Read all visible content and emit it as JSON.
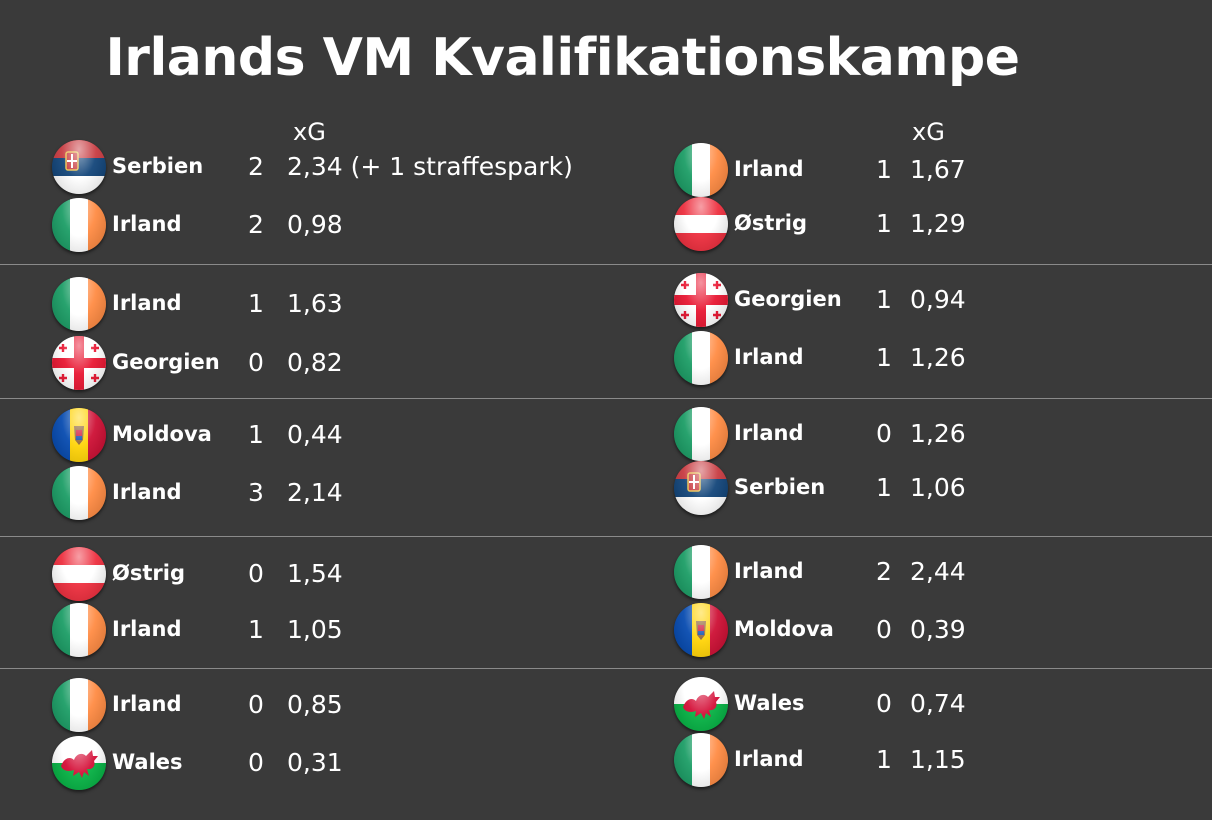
{
  "title": "Irlands VM Kvalifikationskampe",
  "xg_header_left": "xG",
  "xg_header_right": "xG",
  "matches_left": [
    {
      "home": {
        "team": "Serbien",
        "flag": "serbia",
        "goals": "2",
        "xg": "2,34 (+ 1 straffespark)"
      },
      "away": {
        "team": "Irland",
        "flag": "ireland",
        "goals": "2",
        "xg": "0,98"
      }
    },
    {
      "home": {
        "team": "Irland",
        "flag": "ireland",
        "goals": "1",
        "xg": "1,63"
      },
      "away": {
        "team": "Georgien",
        "flag": "georgia",
        "goals": "0",
        "xg": "0,82"
      }
    },
    {
      "home": {
        "team": "Moldova",
        "flag": "moldova",
        "goals": "1",
        "xg": "0,44"
      },
      "away": {
        "team": "Irland",
        "flag": "ireland",
        "goals": "3",
        "xg": "2,14"
      }
    },
    {
      "home": {
        "team": "Østrig",
        "flag": "austria",
        "goals": "0",
        "xg": "1,54"
      },
      "away": {
        "team": "Irland",
        "flag": "ireland",
        "goals": "1",
        "xg": "1,05"
      }
    },
    {
      "home": {
        "team": "Irland",
        "flag": "ireland",
        "goals": "0",
        "xg": "0,85"
      },
      "away": {
        "team": "Wales",
        "flag": "wales",
        "goals": "0",
        "xg": "0,31"
      }
    }
  ],
  "matches_right": [
    {
      "home": {
        "team": "Irland",
        "flag": "ireland",
        "goals": "1",
        "xg": "1,67"
      },
      "away": {
        "team": "Østrig",
        "flag": "austria",
        "goals": "1",
        "xg": "1,29"
      }
    },
    {
      "home": {
        "team": "Georgien",
        "flag": "georgia",
        "goals": "1",
        "xg": "0,94"
      },
      "away": {
        "team": "Irland",
        "flag": "ireland",
        "goals": "1",
        "xg": "1,26"
      }
    },
    {
      "home": {
        "team": "Irland",
        "flag": "ireland",
        "goals": "0",
        "xg": "1,26"
      },
      "away": {
        "team": "Serbien",
        "flag": "serbia",
        "goals": "1",
        "xg": "1,06"
      }
    },
    {
      "home": {
        "team": "Irland",
        "flag": "ireland",
        "goals": "2",
        "xg": "2,44"
      },
      "away": {
        "team": "Moldova",
        "flag": "moldova",
        "goals": "0",
        "xg": "0,39"
      }
    },
    {
      "home": {
        "team": "Wales",
        "flag": "wales",
        "goals": "0",
        "xg": "0,74"
      },
      "away": {
        "team": "Irland",
        "flag": "ireland",
        "goals": "1",
        "xg": "1,15"
      }
    }
  ],
  "colors": {
    "background": "#3a3a3a",
    "divider": "#8a8a8a",
    "text": "#ffffff"
  }
}
